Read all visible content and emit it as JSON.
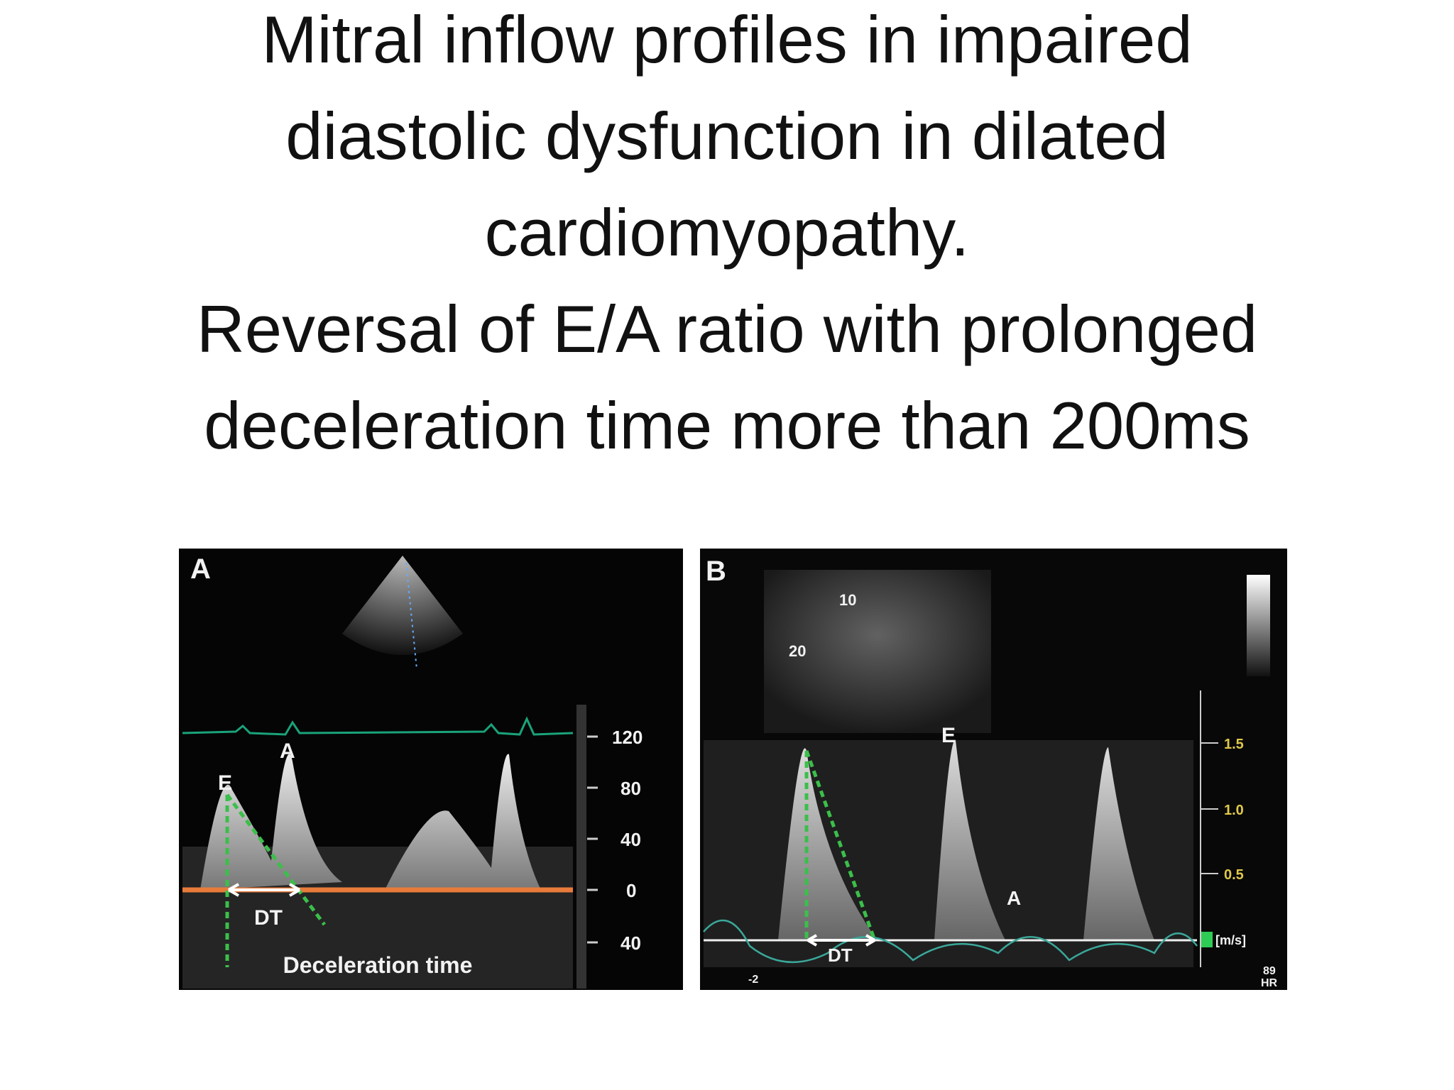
{
  "slide": {
    "title_lines": [
      "Mitral inflow profiles in impaired",
      "diastolic dysfunction in dilated",
      "cardiomyopathy.",
      "Reversal of E/A ratio with prolonged",
      "deceleration time more than 200ms"
    ]
  },
  "panels": [
    {
      "texts": [
        "A",
        "E",
        "A",
        "DT",
        "Deceleration time",
        "120",
        "80",
        "40",
        "0",
        "40"
      ]
    },
    {
      "texts": [
        "B",
        "10",
        "20",
        "E",
        "A",
        "1.5",
        "1.0",
        "0.5",
        "[m/s]",
        "DT",
        "-2",
        "89",
        "HR"
      ]
    }
  ]
}
